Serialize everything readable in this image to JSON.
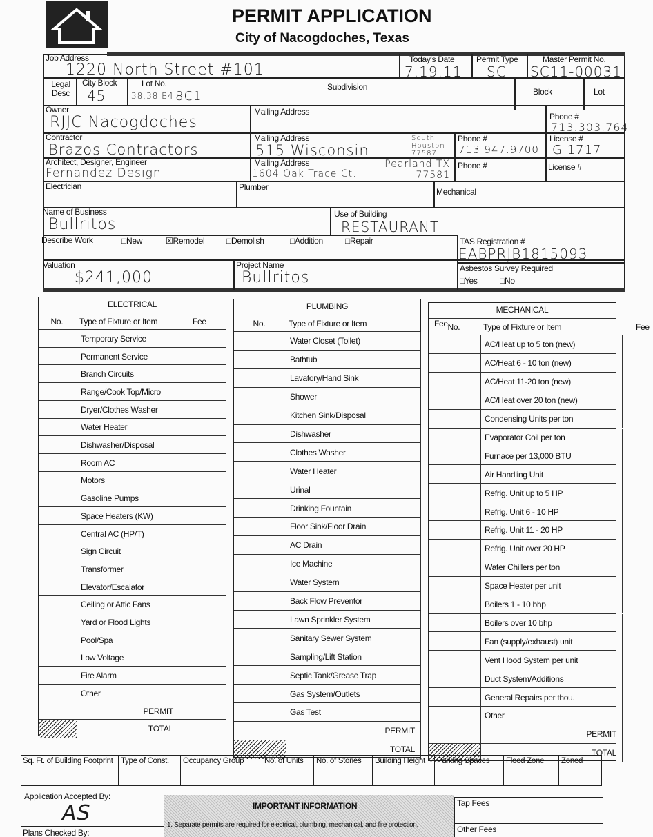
{
  "header": {
    "title": "PERMIT APPLICATION",
    "subtitle": "City of Nacogdoches, Texas",
    "logo": "house-logo"
  },
  "fields": {
    "job_address": {
      "label": "Job Address",
      "value": "1220 North Street #101"
    },
    "todays_date": {
      "label": "Today's Date",
      "value": "7.19.11"
    },
    "permit_type": {
      "label": "Permit Type",
      "value": "SC"
    },
    "master_permit": {
      "label": "Master Permit No.",
      "value": "SC11-00031"
    },
    "legal_desc": {
      "label": "Legal Desc"
    },
    "city_block": {
      "label": "City Block",
      "value": "45"
    },
    "lot_no": {
      "label": "Lot No.",
      "value": "38,38 B4",
      "extra": "8C1"
    },
    "subdivision": {
      "label": "Subdivision"
    },
    "block": {
      "label": "Block"
    },
    "lot": {
      "label": "Lot"
    },
    "owner": {
      "label": "Owner",
      "value": "RJJC Nacogdoches"
    },
    "owner_mailing": {
      "label": "Mailing Address"
    },
    "owner_phone": {
      "label": "Phone #",
      "value": "713.303.764"
    },
    "contractor": {
      "label": "Contractor",
      "value": "Brazos Contractors"
    },
    "contractor_mailing": {
      "label": "Mailing Address",
      "value": "515 Wisconsin",
      "city": "South Houston 77587"
    },
    "contractor_phone": {
      "label": "Phone #",
      "value": "713 947.9700"
    },
    "contractor_license": {
      "label": "License #",
      "value": "G 1717"
    },
    "architect": {
      "label": "Architect, Designer, Engineer",
      "value": "Fernandez Design"
    },
    "architect_mailing": {
      "label": "Mailing Address",
      "value": "1604 Oak Trace Ct.",
      "city": "Pearland TX 77581"
    },
    "architect_phone": {
      "label": "Phone #"
    },
    "architect_license": {
      "label": "License #"
    },
    "electrician": {
      "label": "Electrician"
    },
    "plumber": {
      "label": "Plumber"
    },
    "mechanical": {
      "label": "Mechanical"
    },
    "business_name": {
      "label": "Name of Business",
      "value": "Bullritos"
    },
    "use_of_building": {
      "label": "Use of Building",
      "value": "RESTAURANT"
    },
    "describe_work": {
      "label": "Describe Work",
      "options": [
        {
          "label": "New",
          "checked": false
        },
        {
          "label": "Remodel",
          "checked": true
        },
        {
          "label": "Demolish",
          "checked": false
        },
        {
          "label": "Addition",
          "checked": false
        },
        {
          "label": "Repair",
          "checked": false
        }
      ]
    },
    "tas": {
      "label": "TAS Registration #",
      "value": "EABPRJB1815093"
    },
    "valuation": {
      "label": "Valuation",
      "value": "$241,000"
    },
    "project_name": {
      "label": "Project Name",
      "value": "Bullritos"
    },
    "asbestos": {
      "label": "Asbestos Survey Required",
      "yes": "Yes",
      "no": "No"
    }
  },
  "tables": [
    {
      "title": "ELECTRICAL",
      "col_no": "No.",
      "col_type": "Type of Fixture or Item",
      "col_fee": "Fee",
      "items": [
        "Temporary Service",
        "Permanent Service",
        "Branch Circuits",
        "Range/Cook Top/Micro",
        "Dryer/Clothes Washer",
        "Water Heater",
        "Dishwasher/Disposal",
        "Room AC",
        "Motors",
        "Gasoline Pumps",
        "Space Heaters (KW)",
        "Central AC (HP/T)",
        "Sign Circuit",
        "Transformer",
        "Elevator/Escalator",
        "Ceiling or Attic Fans",
        "Yard or Flood Lights",
        "Pool/Spa",
        "Low Voltage",
        "Fire Alarm",
        "Other"
      ],
      "permit": "PERMIT",
      "total": "TOTAL"
    },
    {
      "title": "PLUMBING",
      "col_no": "No.",
      "col_type": "Type of Fixture or Item",
      "col_fee": "Fee",
      "items": [
        "Water Closet (Toilet)",
        "Bathtub",
        "Lavatory/Hand Sink",
        "Shower",
        "Kitchen Sink/Disposal",
        "Dishwasher",
        "Clothes Washer",
        "Water Heater",
        "Urinal",
        "Drinking Fountain",
        "Floor Sink/Floor Drain",
        "AC Drain",
        "Ice Machine",
        "Water System",
        "Back Flow Preventor",
        "Lawn Sprinkler System",
        "Sanitary Sewer System",
        "Sampling/Lift Station",
        "Septic Tank/Grease Trap",
        "Gas System/Outlets",
        "Gas Test"
      ],
      "permit": "PERMIT",
      "total": "TOTAL"
    },
    {
      "title": "MECHANICAL",
      "col_no": "No.",
      "col_type": "Type of Fixture or Item",
      "col_fee": "Fee",
      "items": [
        "AC/Heat up to 5 ton (new)",
        "AC/Heat 6 - 10 ton (new)",
        "AC/Heat 11-20 ton (new)",
        "AC/Heat over 20 ton (new)",
        "Condensing Units per ton",
        "Evaporator Coil per ton",
        "Furnace per 13,000 BTU",
        "Air Handling Unit",
        "Refrig. Unit up to 5 HP",
        "Refrig. Unit 6 - 10 HP",
        "Refrig. Unit 11 - 20 HP",
        "Refrig. Unit over 20 HP",
        "Water Chillers per ton",
        "Space Heater per unit",
        "Boilers 1 - 10 bhp",
        "Boilers over 10 bhp",
        "Fan (supply/exhaust) unit",
        "Vent Hood System per unit",
        "Duct System/Additions",
        "General Repairs per thou.",
        "Other"
      ],
      "permit": "PERMIT",
      "total": "TOTAL"
    }
  ],
  "building_info": [
    "Sq. Ft. of Building Footprint",
    "Type of Const.",
    "Occupancy Group",
    "No. of Units",
    "No. of Stories",
    "Building Height",
    "Parking Spaces",
    "Flood Zone",
    "Zoned"
  ],
  "footer": {
    "accepted_by": "Application Accepted By:",
    "accepted_signature": "AS",
    "plans_checked": "Plans Checked By:",
    "important_title": "IMPORTANT INFORMATION",
    "important_text": "1. Separate permits are required for electrical, plumbing, mechanical, and fire protection.",
    "tap_fees": "Tap Fees",
    "other_fees": "Other Fees"
  }
}
